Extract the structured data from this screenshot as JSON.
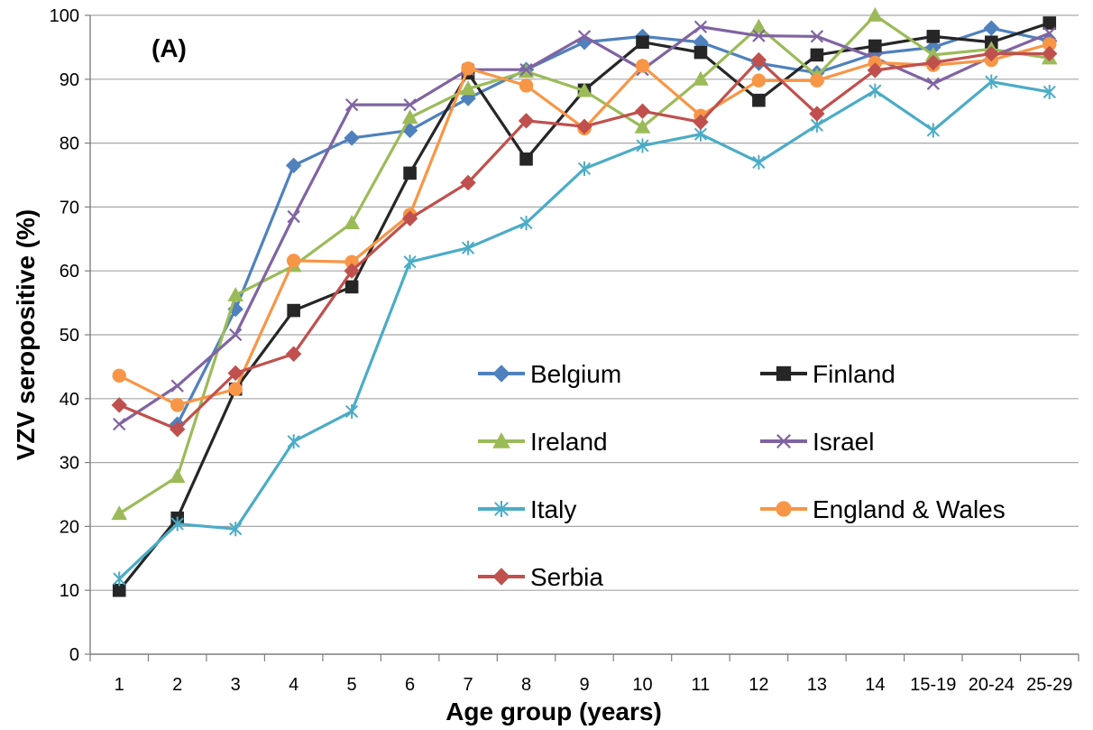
{
  "chart_data": {
    "type": "line",
    "panel_label": "(A)",
    "title": "",
    "xlabel": "Age group (years)",
    "ylabel": "VZV seropositive (%)",
    "ylim": [
      0,
      100
    ],
    "yticks": [
      0,
      10,
      20,
      30,
      40,
      50,
      60,
      70,
      80,
      90,
      100
    ],
    "grid": "horizontal",
    "legend_position": "lower-right, inside plot, two columns",
    "categories": [
      "1",
      "2",
      "3",
      "4",
      "5",
      "6",
      "7",
      "8",
      "9",
      "10",
      "11",
      "12",
      "13",
      "14",
      "15-19",
      "20-24",
      "25-29"
    ],
    "series": [
      {
        "name": "Belgium",
        "color": "#4F81BD",
        "marker": "diamond",
        "values": [
          null,
          36,
          54,
          76.5,
          80.8,
          82,
          87,
          91.5,
          95.8,
          96.7,
          95.8,
          92.5,
          91,
          94,
          95,
          98,
          96
        ]
      },
      {
        "name": "Finland",
        "color": "#262626",
        "marker": "square",
        "values": [
          10,
          21.3,
          41.5,
          53.8,
          57.5,
          75.3,
          91,
          77.5,
          88.3,
          95.8,
          94.2,
          86.7,
          93.8,
          95.2,
          96.7,
          95.8,
          98.8
        ]
      },
      {
        "name": "Ireland",
        "color": "#9BBB59",
        "marker": "triangle",
        "values": [
          22,
          27.8,
          56.2,
          60.8,
          67.5,
          84,
          88.5,
          91.2,
          88.2,
          82.5,
          90,
          98.2,
          90.5,
          100,
          93.8,
          94.7,
          93.3
        ]
      },
      {
        "name": "Israel",
        "color": "#8064A2",
        "marker": "x",
        "values": [
          36,
          42,
          50,
          68.5,
          86,
          86,
          91.5,
          91.5,
          96.7,
          91.5,
          98.2,
          96.8,
          96.7,
          93.3,
          89.3,
          93.5,
          97.2
        ]
      },
      {
        "name": "Italy",
        "color": "#4BACC6",
        "marker": "star",
        "values": [
          11.8,
          20.4,
          19.6,
          33.3,
          38,
          61.4,
          63.6,
          67.5,
          76,
          79.6,
          81.4,
          77,
          82.8,
          88.2,
          82,
          89.6,
          88
        ]
      },
      {
        "name": "England & Wales",
        "color": "#F79646",
        "marker": "circle",
        "values": [
          43.6,
          39,
          41.5,
          61.6,
          61.4,
          68.8,
          91.7,
          89,
          82.3,
          92.1,
          84.3,
          89.8,
          89.8,
          92.6,
          92.2,
          93,
          95.5
        ]
      },
      {
        "name": "Serbia",
        "color": "#C0504D",
        "marker": "diamond",
        "values": [
          39,
          35.2,
          44,
          47,
          60,
          68.2,
          73.8,
          83.5,
          82.6,
          85,
          83.3,
          93,
          84.6,
          91.4,
          92.6,
          94,
          94
        ]
      }
    ]
  }
}
